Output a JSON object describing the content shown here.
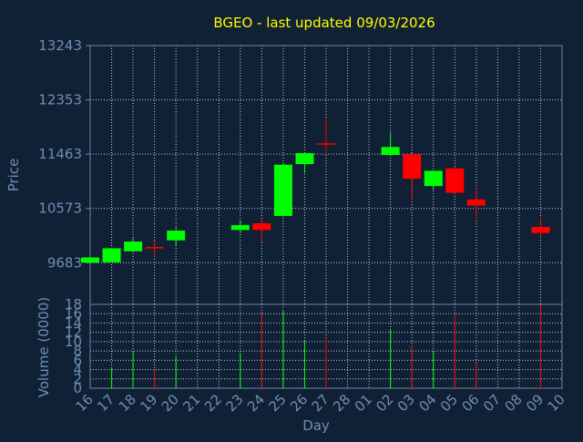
{
  "chart_data": [
    {
      "type": "candlestick",
      "title": "BGEO - last updated 09/03/2026",
      "ylabel": "Price",
      "xlabel": "Day",
      "ylim": [
        9000,
        13243
      ],
      "yticks": [
        9683,
        10573,
        11463,
        12353,
        13243
      ],
      "grid": true,
      "x": [
        "16",
        "17",
        "18",
        "19",
        "20",
        "21",
        "22",
        "23",
        "24",
        "25",
        "26",
        "27",
        "28",
        "01",
        "02",
        "03",
        "04",
        "05",
        "06",
        "07",
        "08",
        "09",
        "10"
      ],
      "candles": [
        {
          "x": "16",
          "open": 9683,
          "close": 9770,
          "high": 9775,
          "low": 9680
        },
        {
          "x": "17",
          "open": 9690,
          "close": 9920,
          "high": 9925,
          "low": 9688
        },
        {
          "x": "18",
          "open": 9870,
          "close": 10030,
          "high": 10090,
          "low": 9860
        },
        {
          "x": "19",
          "open": 9940,
          "close": 9930,
          "high": 10040,
          "low": 9780
        },
        {
          "x": "20",
          "open": 10050,
          "close": 10210,
          "high": 10260,
          "low": 9950
        },
        {
          "x": "23",
          "open": 10220,
          "close": 10300,
          "high": 10380,
          "low": 10170
        },
        {
          "x": "24",
          "open": 10330,
          "close": 10220,
          "high": 10390,
          "low": 10020
        },
        {
          "x": "25",
          "open": 10450,
          "close": 11290,
          "high": 11320,
          "low": 10440
        },
        {
          "x": "26",
          "open": 11300,
          "close": 11480,
          "high": 11490,
          "low": 11150
        },
        {
          "x": "27",
          "open": 11640,
          "close": 11620,
          "high": 12050,
          "low": 11460
        },
        {
          "x": "02",
          "open": 11450,
          "close": 11580,
          "high": 11820,
          "low": 11440
        },
        {
          "x": "03",
          "open": 11460,
          "close": 11060,
          "high": 11480,
          "low": 10710
        },
        {
          "x": "04",
          "open": 10940,
          "close": 11190,
          "high": 11200,
          "low": 10880
        },
        {
          "x": "05",
          "open": 11230,
          "close": 10830,
          "high": 11250,
          "low": 10800
        },
        {
          "x": "06",
          "open": 10720,
          "close": 10620,
          "high": 10920,
          "low": 10400
        },
        {
          "x": "09",
          "open": 10270,
          "close": 10170,
          "high": 10430,
          "low": 10100
        }
      ]
    },
    {
      "type": "bar",
      "ylabel": "Volume (0000)",
      "xlabel": "Day",
      "ylim": [
        0,
        18
      ],
      "yticks": [
        0,
        2,
        4,
        6,
        8,
        10,
        12,
        14,
        16,
        18
      ],
      "grid": true,
      "series": [
        {
          "values": [
            {
              "x": "17",
              "volume": 4.5,
              "direction": "up"
            },
            {
              "x": "18",
              "volume": 8,
              "direction": "up"
            },
            {
              "x": "19",
              "volume": 3.8,
              "direction": "down"
            },
            {
              "x": "20",
              "volume": 6.6,
              "direction": "up"
            },
            {
              "x": "23",
              "volume": 7.6,
              "direction": "up"
            },
            {
              "x": "24",
              "volume": 16,
              "direction": "down"
            },
            {
              "x": "25",
              "volume": 16.8,
              "direction": "up"
            },
            {
              "x": "26",
              "volume": 10.4,
              "direction": "up"
            },
            {
              "x": "27",
              "volume": 10.6,
              "direction": "down"
            },
            {
              "x": "02",
              "volume": 12.6,
              "direction": "up"
            },
            {
              "x": "03",
              "volume": 9.3,
              "direction": "down"
            },
            {
              "x": "04",
              "volume": 8,
              "direction": "up"
            },
            {
              "x": "05",
              "volume": 16,
              "direction": "down"
            },
            {
              "x": "06",
              "volume": 5.6,
              "direction": "down"
            },
            {
              "x": "09",
              "volume": 17.8,
              "direction": "down"
            }
          ]
        }
      ]
    }
  ],
  "colors": {
    "background": "#102035",
    "plot_border": "#6f86a8",
    "grid": "#c4cfdd",
    "text": "#6f8fb2",
    "title": "#ffff00",
    "up": "#00ff00",
    "down": "#ff0000"
  }
}
